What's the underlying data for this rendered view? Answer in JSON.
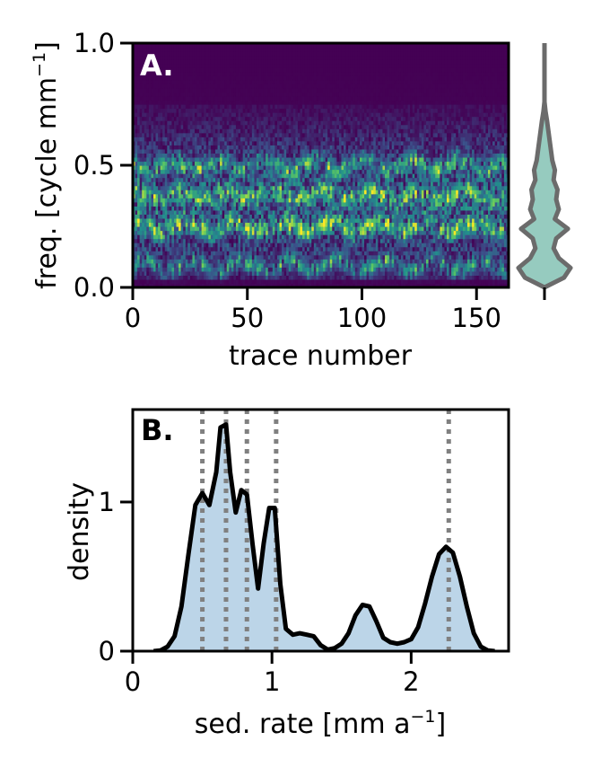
{
  "chart_data": [
    {
      "type": "heatmap",
      "panel_label": "A.",
      "xlabel": "trace number",
      "ylabel": "freq. [cycle mm",
      "ylabel_sup": "−1",
      "ylabel_close": "]",
      "xlim": [
        0,
        164
      ],
      "ylim": [
        0.0,
        1.0
      ],
      "x_ticks": [
        0,
        50,
        100,
        150
      ],
      "x_tick_labels": [
        "0",
        "50",
        "100",
        "150"
      ],
      "y_ticks": [
        0.0,
        0.5,
        1.0
      ],
      "y_tick_labels": [
        "0.0",
        "0.5",
        "1.0"
      ],
      "colormap": "viridis",
      "n_traces": 164,
      "frequency_bands": [
        0.09,
        0.25,
        0.38,
        0.5
      ],
      "value_range_note": "",
      "marginal_violin": {
        "orientation": "vertical",
        "fill": "#96cbbf",
        "edge": "#6b6b6b",
        "shape": [
          {
            "f": 0.0,
            "w": 0.0
          },
          {
            "f": 0.04,
            "w": 0.75
          },
          {
            "f": 0.08,
            "w": 1.0
          },
          {
            "f": 0.12,
            "w": 0.55
          },
          {
            "f": 0.16,
            "w": 0.35
          },
          {
            "f": 0.2,
            "w": 0.45
          },
          {
            "f": 0.24,
            "w": 0.9
          },
          {
            "f": 0.28,
            "w": 0.4
          },
          {
            "f": 0.32,
            "w": 0.55
          },
          {
            "f": 0.36,
            "w": 0.45
          },
          {
            "f": 0.4,
            "w": 0.5
          },
          {
            "f": 0.44,
            "w": 0.35
          },
          {
            "f": 0.48,
            "w": 0.4
          },
          {
            "f": 0.52,
            "w": 0.3
          },
          {
            "f": 0.56,
            "w": 0.25
          },
          {
            "f": 0.6,
            "w": 0.2
          },
          {
            "f": 0.64,
            "w": 0.15
          },
          {
            "f": 0.68,
            "w": 0.1
          },
          {
            "f": 0.72,
            "w": 0.04
          },
          {
            "f": 0.76,
            "w": 0.0
          }
        ],
        "line_top": 1.0,
        "line_bottom": 0.0
      }
    },
    {
      "type": "area",
      "panel_label": "B.",
      "xlabel": "sed. rate [mm a",
      "xlabel_sup": "−1",
      "xlabel_close": "]",
      "ylabel": "density",
      "xlim": [
        0,
        2.7
      ],
      "ylim": [
        0,
        1.62
      ],
      "x_ticks": [
        0,
        1,
        2
      ],
      "x_tick_labels": [
        "0",
        "1",
        "2"
      ],
      "y_ticks": [
        0,
        1
      ],
      "y_tick_labels": [
        "0",
        "1"
      ],
      "fill_color": "#bcd5e8",
      "line_color": "#000000",
      "x": [
        0.15,
        0.2,
        0.25,
        0.3,
        0.35,
        0.4,
        0.45,
        0.5,
        0.55,
        0.6,
        0.63,
        0.67,
        0.7,
        0.74,
        0.78,
        0.82,
        0.86,
        0.9,
        0.94,
        0.98,
        1.02,
        1.06,
        1.1,
        1.15,
        1.2,
        1.25,
        1.3,
        1.35,
        1.4,
        1.45,
        1.5,
        1.55,
        1.6,
        1.65,
        1.7,
        1.75,
        1.8,
        1.85,
        1.9,
        1.95,
        2.0,
        2.05,
        2.1,
        2.15,
        2.2,
        2.25,
        2.3,
        2.35,
        2.4,
        2.45,
        2.5,
        2.55,
        2.6
      ],
      "values": [
        0.0,
        0.005,
        0.03,
        0.1,
        0.3,
        0.65,
        0.98,
        1.06,
        0.98,
        1.2,
        1.5,
        1.52,
        1.2,
        0.93,
        1.08,
        1.05,
        0.72,
        0.42,
        0.72,
        0.96,
        0.96,
        0.45,
        0.15,
        0.11,
        0.12,
        0.11,
        0.1,
        0.04,
        0.01,
        0.02,
        0.05,
        0.12,
        0.24,
        0.31,
        0.3,
        0.2,
        0.09,
        0.06,
        0.05,
        0.06,
        0.08,
        0.16,
        0.32,
        0.5,
        0.65,
        0.7,
        0.66,
        0.5,
        0.3,
        0.12,
        0.03,
        0.005,
        0.0
      ],
      "vertical_lines": [
        0.5,
        0.67,
        0.82,
        1.03,
        2.27
      ],
      "vertical_line_color": "#808080"
    }
  ]
}
